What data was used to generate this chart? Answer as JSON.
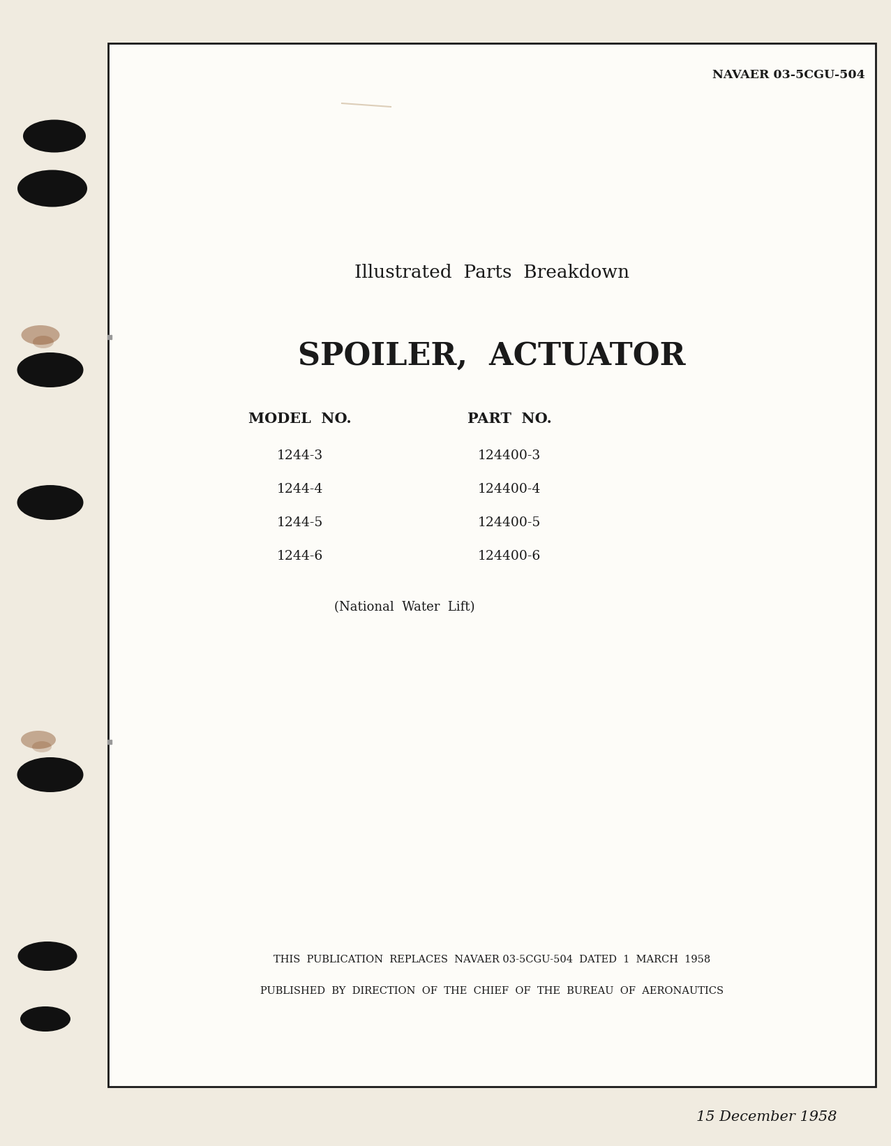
{
  "background_color": "#f0ebe0",
  "inner_box_color": "#fdfcf8",
  "border_color": "#1a1a1a",
  "text_color": "#1a1a1a",
  "navaer_text": "NAVAER 03-5CGU-504",
  "title_line1": "Illustrated  Parts  Breakdown",
  "title_line2": "SPOILER,  ACTUATOR",
  "model_header": "MODEL  NO.",
  "part_header": "PART  NO.",
  "models": [
    "1244-3",
    "1244-4",
    "1244-5",
    "1244-6"
  ],
  "parts": [
    "124400-3",
    "124400-4",
    "124400-5",
    "124400-6"
  ],
  "subtitle": "(National  Water  Lift)",
  "footer_line1": "THIS  PUBLICATION  REPLACES  NAVAER 03-5CGU-504  DATED  1  MARCH  1958",
  "footer_line2": "PUBLISHED  BY  DIRECTION  OF  THE  CHIEF  OF  THE  BUREAU  OF  AERONAUTICS",
  "date_text": "15 December 1958",
  "hole_color": "#111111",
  "rust_color": "#7B3B10"
}
